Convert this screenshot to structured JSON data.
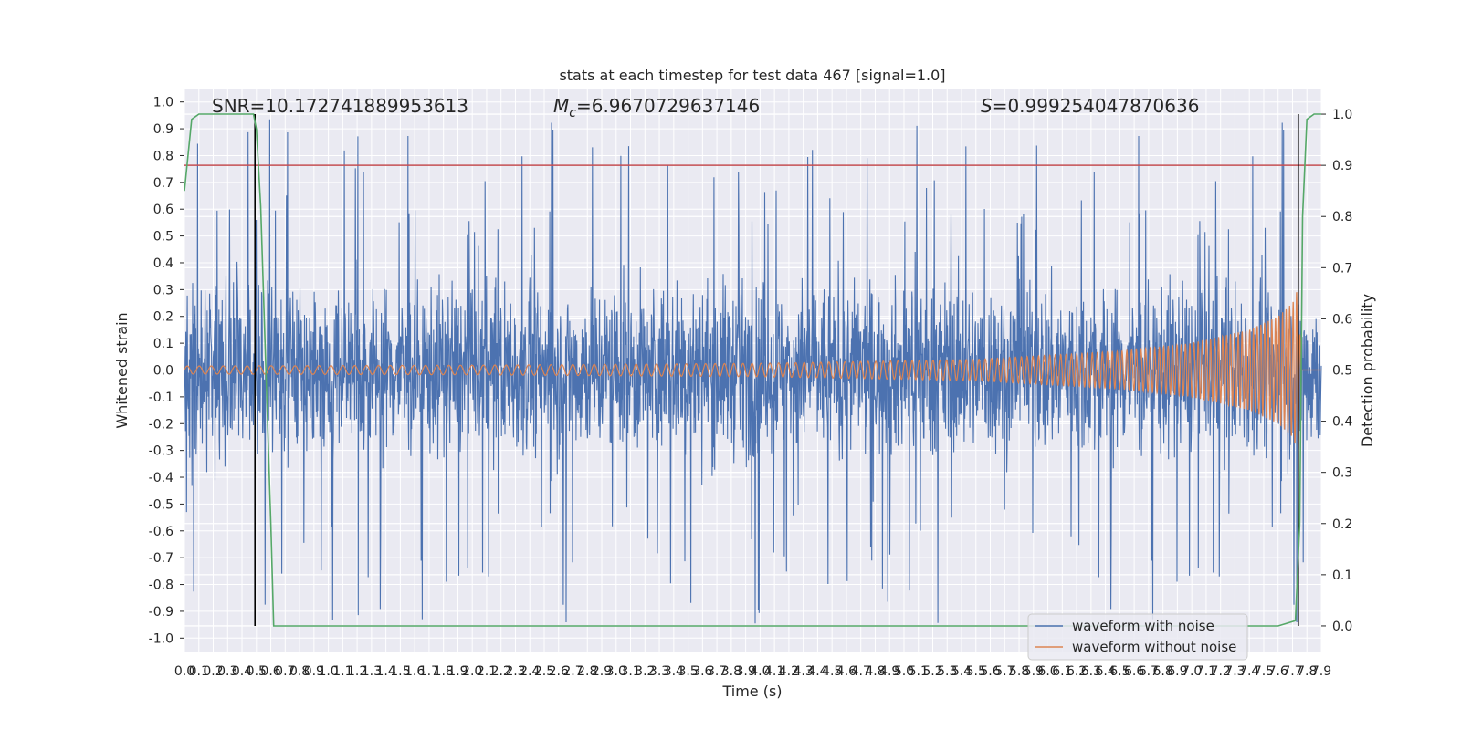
{
  "chart_data": {
    "type": "line",
    "title": "stats at each timestep for test data 467 [signal=1.0]",
    "xlabel": "Time (s)",
    "ylabel_left": "Whitened strain",
    "ylabel_right": "Detection probability",
    "xlim": [
      0.0,
      7.9
    ],
    "ylim_left": [
      -1.05,
      1.05
    ],
    "ylim_right": [
      -0.05,
      1.05
    ],
    "x_ticks": [
      "0.0",
      "0.1",
      "0.2",
      "0.3",
      "0.4",
      "0.5",
      "0.6",
      "0.7",
      "0.8",
      "0.9",
      "1.0",
      "1.1",
      "1.2",
      "1.3",
      "1.4",
      "1.5",
      "1.6",
      "1.7",
      "1.8",
      "1.9",
      "2.0",
      "2.1",
      "2.2",
      "2.3",
      "2.4",
      "2.5",
      "2.6",
      "2.7",
      "2.8",
      "2.9",
      "3.0",
      "3.1",
      "3.2",
      "3.3",
      "3.4",
      "3.5",
      "3.6",
      "3.7",
      "3.8",
      "3.9",
      "4.0",
      "4.1",
      "4.2",
      "4.3",
      "4.4",
      "4.5",
      "4.6",
      "4.7",
      "4.8",
      "4.9",
      "5.0",
      "5.1",
      "5.2",
      "5.3",
      "5.4",
      "5.5",
      "5.6",
      "5.7",
      "5.8",
      "5.9",
      "6.0",
      "6.1",
      "6.2",
      "6.3",
      "6.4",
      "6.5",
      "6.6",
      "6.7",
      "6.8",
      "6.9",
      "7.0",
      "7.1",
      "7.2",
      "7.3",
      "7.4",
      "7.5",
      "7.6",
      "7.7",
      "7.8",
      "7.9"
    ],
    "y_ticks_left": [
      "-1.0",
      "-0.9",
      "-0.8",
      "-0.7",
      "-0.6",
      "-0.5",
      "-0.4",
      "-0.3",
      "-0.2",
      "-0.1",
      "0.0",
      "0.1",
      "0.2",
      "0.3",
      "0.4",
      "0.5",
      "0.6",
      "0.7",
      "0.8",
      "0.9",
      "1.0"
    ],
    "y_ticks_right": [
      "0.0",
      "0.1",
      "0.2",
      "0.3",
      "0.4",
      "0.5",
      "0.6",
      "0.7",
      "0.8",
      "0.9",
      "1.0"
    ],
    "annotations": {
      "snr": "SNR=10.172741889953613",
      "mc_symbol": "M",
      "mc_sub": "c",
      "mc_value": "=6.9670729637146",
      "s_symbol": "S",
      "s_value": "=0.999254047870636"
    },
    "threshold_line": {
      "axis": "right",
      "value": 0.9,
      "color": "#c44e52"
    },
    "vertical_markers": [
      0.49,
      7.74
    ],
    "noise_envelope": {
      "typical_amplitude": 0.45,
      "peak_amplitude": 0.95,
      "seed": 467
    },
    "signal_envelope": {
      "x": [
        0.0,
        2.0,
        4.0,
        5.5,
        6.5,
        7.0,
        7.4,
        7.6,
        7.7,
        7.74,
        7.76,
        7.9
      ],
      "amplitude": [
        0.015,
        0.018,
        0.025,
        0.04,
        0.07,
        0.1,
        0.15,
        0.2,
        0.25,
        0.31,
        0.0,
        0.0
      ]
    },
    "detection_probability": {
      "x": [
        0.0,
        0.05,
        0.1,
        0.48,
        0.5,
        0.53,
        0.56,
        0.6,
        0.62,
        7.6,
        7.72,
        7.75,
        7.77,
        7.8,
        7.85,
        7.9
      ],
      "y": [
        0.85,
        0.99,
        1.0,
        1.0,
        0.97,
        0.82,
        0.55,
        0.2,
        0.0,
        0.0,
        0.01,
        0.2,
        0.8,
        0.99,
        1.0,
        1.0
      ]
    },
    "series": [
      {
        "name": "waveform with noise",
        "color": "#4c72b0",
        "axis": "left"
      },
      {
        "name": "waveform without noise",
        "color": "#dd8452",
        "axis": "left"
      },
      {
        "name": "detection probability",
        "color": "#55a868",
        "axis": "right"
      }
    ],
    "legend": [
      "waveform with noise",
      "waveform without noise"
    ],
    "legend_position": "lower-right",
    "grid": true
  }
}
